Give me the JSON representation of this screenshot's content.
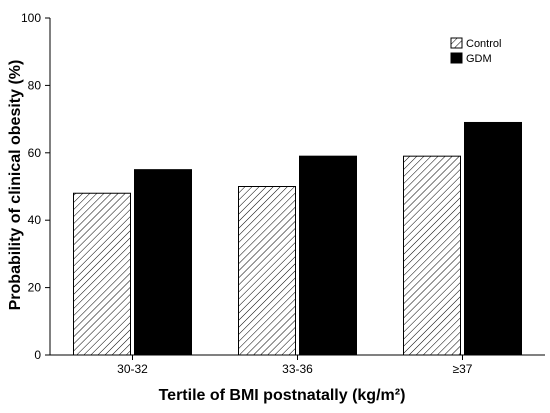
{
  "chart_data": {
    "type": "bar",
    "title": "",
    "xlabel": "Tertile of BMI postnatally (kg/m²)",
    "ylabel": "Probability of clinical obesity (%)",
    "categories": [
      "30-32",
      "33-36",
      "≥37"
    ],
    "ylim": [
      0,
      100
    ],
    "yticks": [
      0,
      20,
      40,
      60,
      80,
      100
    ],
    "grid": false,
    "legend_position": "top-right",
    "series": [
      {
        "name": "Control",
        "values": [
          48,
          50,
          59
        ],
        "fill": "hatched"
      },
      {
        "name": "GDM",
        "values": [
          55,
          59,
          69
        ],
        "fill": "#000000"
      }
    ]
  }
}
